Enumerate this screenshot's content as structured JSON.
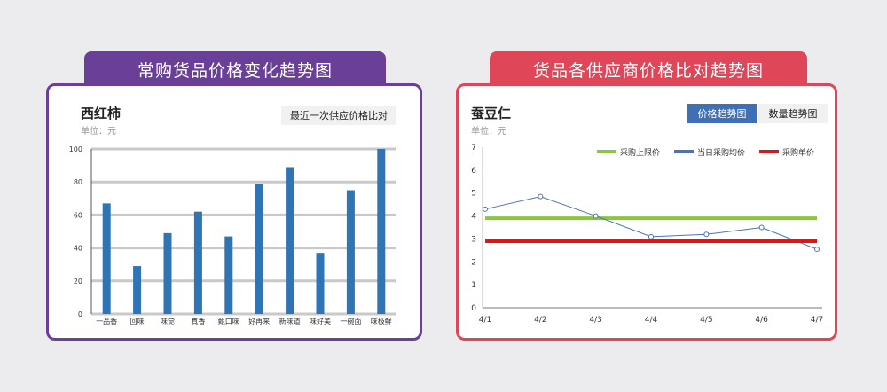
{
  "left": {
    "tab_title": "常购货品价格变化趋势图",
    "item_name": "西红柿",
    "unit": "单位：元",
    "recent_button": "最近一次供应价格比对"
  },
  "right": {
    "tab_title": "货品各供应商价格比对趋势图",
    "item_name": "蚕豆仁",
    "unit": "单位：元",
    "tab_price": "价格趋势图",
    "tab_qty": "数量趋势图"
  },
  "chart_data": [
    {
      "type": "bar",
      "categories": [
        "一品香",
        "回味",
        "味觉",
        "真香",
        "甄口味",
        "好再来",
        "新味道",
        "味好美",
        "一碗面",
        "味极鲜"
      ],
      "values": [
        67,
        29,
        49,
        62,
        47,
        79,
        89,
        37,
        75,
        100
      ],
      "ylim": [
        0,
        100
      ],
      "yticks": [
        0,
        20,
        40,
        60,
        80,
        100
      ],
      "grid": true,
      "colors": {
        "bar": "#2f74b5",
        "grid": "#c9c9c9"
      }
    },
    {
      "type": "line",
      "x": [
        "4/1",
        "4/2",
        "4/3",
        "4/4",
        "4/5",
        "4/6",
        "4/7"
      ],
      "ylim": [
        0,
        7
      ],
      "yticks": [
        0,
        1,
        2,
        3,
        4,
        5,
        6,
        7
      ],
      "legend_position": "top-right",
      "series": [
        {
          "name": "采购上限价",
          "values": [
            3.9,
            3.9,
            3.9,
            3.9,
            3.9,
            3.9,
            3.9
          ],
          "color": "#8cc63f",
          "style": "thick"
        },
        {
          "name": "当日采购均价",
          "values": [
            4.3,
            4.85,
            4.0,
            3.1,
            3.2,
            3.5,
            2.55
          ],
          "color": "#4a72b8",
          "style": "thin-markers"
        },
        {
          "name": "采购单价",
          "values": [
            2.9,
            2.9,
            2.9,
            2.9,
            2.9,
            2.9,
            2.9
          ],
          "color": "#d7191c",
          "style": "thick"
        }
      ]
    }
  ]
}
